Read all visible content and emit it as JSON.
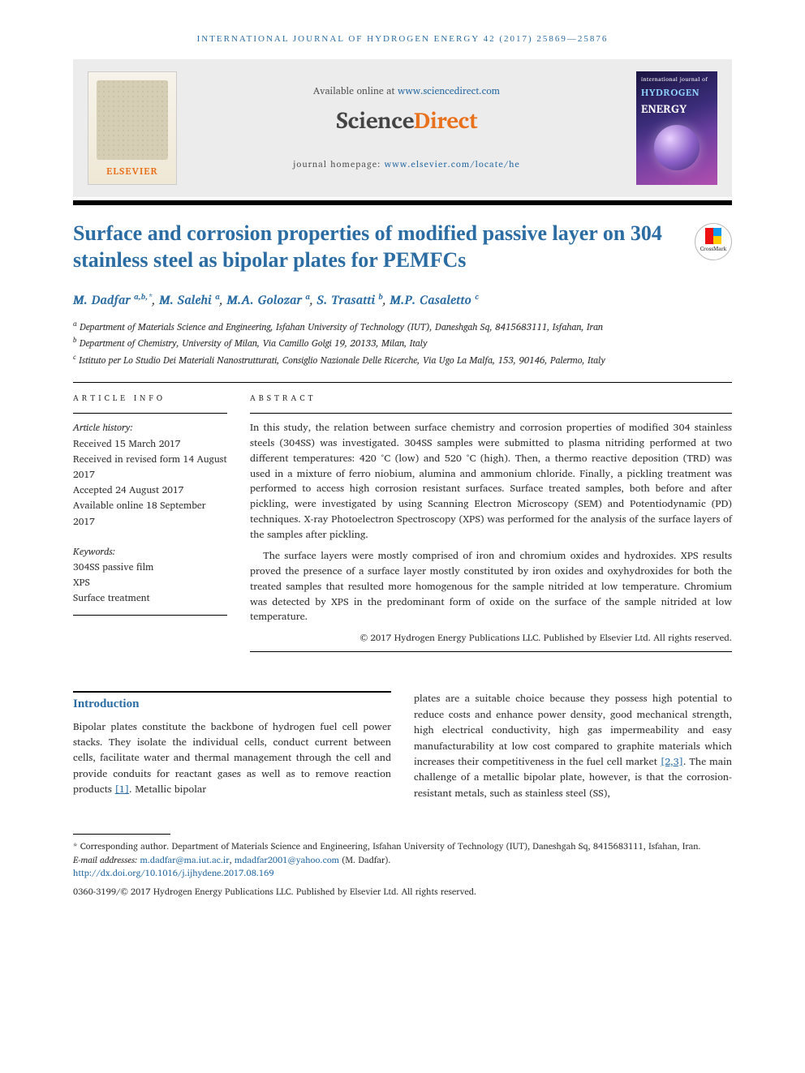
{
  "running_head": "INTERNATIONAL JOURNAL OF HYDROGEN ENERGY 42 (2017) 25869—25876",
  "header": {
    "available_prefix": "Available online at ",
    "available_link_text": "www.sciencedirect.com",
    "sd_brand_left": "Science",
    "sd_brand_right": "Direct",
    "homepage_label": "journal homepage: ",
    "homepage_link_text": "www.elsevier.com/locate/he",
    "elsevier_word": "ELSEVIER",
    "cover_small": "international journal of",
    "cover_h": "HYDROGEN",
    "cover_e": "ENERGY"
  },
  "title": "Surface and corrosion properties of modified passive layer on 304 stainless steel as bipolar plates for PEMFCs",
  "crossmark_label": "CrossMark",
  "authors_html": "M. Dadfar <sup class='aff-sup'>a,b,*</sup><span class='sep'>, </span>M. Salehi <sup class='aff-sup'>a</sup><span class='sep'>, </span>M.A. Golozar <sup class='aff-sup'>a</sup><span class='sep'>, </span>S. Trasatti <sup class='aff-sup'>b</sup><span class='sep'>, </span>M.P. Casaletto <sup class='aff-sup'>c</sup>",
  "affiliations": {
    "a": "Department of Materials Science and Engineering, Isfahan University of Technology (IUT), Daneshgah Sq, 8415683111, Isfahan, Iran",
    "b": "Department of Chemistry, University of Milan, Via Camillo Golgi 19, 20133, Milan, Italy",
    "c": "Istituto per Lo Studio Dei Materiali Nanostrutturati, Consiglio Nazionale Delle Ricerche, Via Ugo La Malfa, 153, 90146, Palermo, Italy"
  },
  "article_info": {
    "heading": "ARTICLE INFO",
    "history_label": "Article history:",
    "received": "Received 15 March 2017",
    "revised": "Received in revised form 14 August 2017",
    "accepted": "Accepted 24 August 2017",
    "online": "Available online 18 September 2017",
    "keywords_label": "Keywords:",
    "keywords": [
      "304SS passive film",
      "XPS",
      "Surface treatment"
    ]
  },
  "abstract": {
    "heading": "ABSTRACT",
    "p1": "In this study, the relation between surface chemistry and corrosion properties of modified 304 stainless steels (304SS) was investigated. 304SS samples were submitted to plasma nitriding performed at two different temperatures: 420 °C (low) and 520 °C (high). Then, a thermo reactive deposition (TRD) was used in a mixture of ferro niobium, alumina and ammonium chloride. Finally, a pickling treatment was performed to access high corrosion resistant surfaces. Surface treated samples, both before and after pickling, were investigated by using Scanning Electron Microscopy (SEM) and Potentiodynamic (PD) techniques. X-ray Photoelectron Spectroscopy (XPS) was performed for the analysis of the surface layers of the samples after pickling.",
    "p2": "The surface layers were mostly comprised of iron and chromium oxides and hydroxides. XPS results proved the presence of a surface layer mostly constituted by iron oxides and oxyhydroxides for both the treated samples that resulted more homogenous for the sample nitrided at low temperature. Chromium was detected by XPS in the predominant form of oxide on the surface of the sample nitrided at low temperature.",
    "copyright": "© 2017 Hydrogen Energy Publications LLC. Published by Elsevier Ltd. All rights reserved."
  },
  "intro": {
    "heading": "Introduction",
    "left_para": "Bipolar plates constitute the backbone of hydrogen fuel cell power stacks. They isolate the individual cells, conduct current between cells, facilitate water and thermal management through the cell and provide conduits for reactant gases as well as to remove reaction products ",
    "ref1": "[1]",
    "left_tail": ". Metallic bipolar",
    "right_para_a": "plates are a suitable choice because they possess high potential to reduce costs and enhance power density, good mechanical strength, high electrical conductivity, high gas impermeability and easy manufacturability at low cost compared to graphite materials which increases their competitiveness in the fuel cell market ",
    "ref23": "[2,3]",
    "right_para_b": ". The main challenge of a metallic bipolar plate, however, is that the corrosion-resistant metals, such as stainless steel (SS),"
  },
  "footnotes": {
    "corr": "* Corresponding author. Department of Materials Science and Engineering, Isfahan University of Technology (IUT), Daneshgah Sq, 8415683111, Isfahan, Iran.",
    "email_label": "E-mail addresses: ",
    "email1": "m.dadfar@ma.iut.ac.ir",
    "email_sep": ", ",
    "email2": "mdadfar2001@yahoo.com",
    "email_tail": " (M. Dadfar).",
    "doi": "http://dx.doi.org/10.1016/j.ijhydene.2017.08.169",
    "issn_line": "0360-3199/© 2017 Hydrogen Energy Publications LLC. Published by Elsevier Ltd. All rights reserved."
  },
  "colors": {
    "link": "#2b6ca3",
    "orange": "#e9711c",
    "headerbg": "#ececec"
  }
}
